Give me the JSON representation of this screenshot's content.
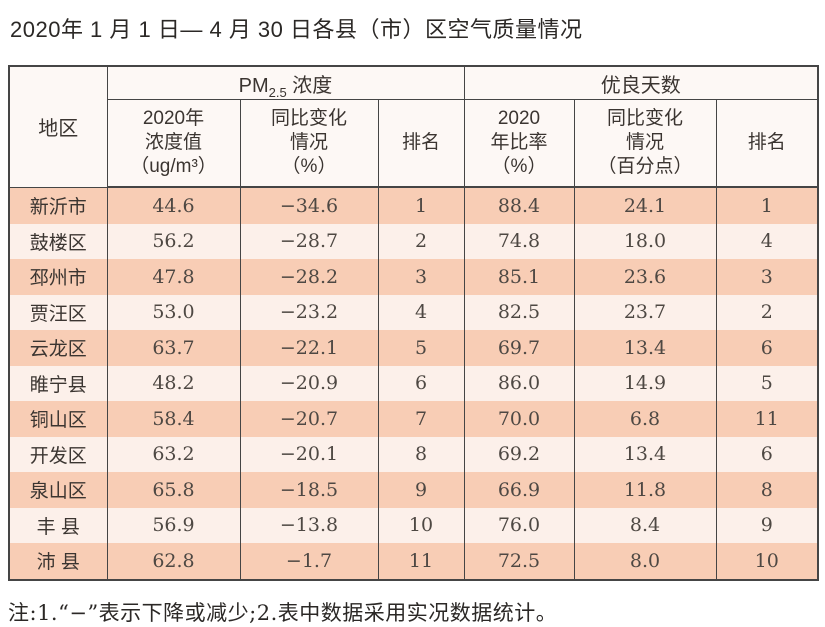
{
  "title": "2020年 1 月 1 日— 4 月 30 日各县（市）区空气质量情况",
  "table": {
    "region_header": "地区",
    "groups": {
      "pm25": {
        "base": "PM",
        "sub": "2.5",
        "rest": " 浓度"
      },
      "good_days": "优良天数"
    },
    "sub_columns": [
      {
        "id": "pm25-value",
        "lines": [
          "2020年",
          "浓度值",
          "（ug/m³）"
        ]
      },
      {
        "id": "pm25-yoy",
        "lines": [
          "同比变化",
          "情况",
          "（%）"
        ]
      },
      {
        "id": "pm25-rank",
        "lines": [
          "排名"
        ]
      },
      {
        "id": "good-rate",
        "lines": [
          "2020",
          "年比率",
          "（%）"
        ]
      },
      {
        "id": "good-yoy",
        "lines": [
          "同比变化",
          "情况",
          "（百分点）"
        ]
      },
      {
        "id": "good-rank",
        "lines": [
          "排名"
        ]
      }
    ],
    "rows": [
      {
        "region": "新沂市",
        "values": [
          "44.6",
          "−34.6",
          "1",
          "88.4",
          "24.1",
          "1"
        ]
      },
      {
        "region": "鼓楼区",
        "values": [
          "56.2",
          "−28.7",
          "2",
          "74.8",
          "18.0",
          "4"
        ]
      },
      {
        "region": "邳州市",
        "values": [
          "47.8",
          "−28.2",
          "3",
          "85.1",
          "23.6",
          "3"
        ]
      },
      {
        "region": "贾汪区",
        "values": [
          "53.0",
          "−23.2",
          "4",
          "82.5",
          "23.7",
          "2"
        ]
      },
      {
        "region": "云龙区",
        "values": [
          "63.7",
          "−22.1",
          "5",
          "69.7",
          "13.4",
          "6"
        ]
      },
      {
        "region": "睢宁县",
        "values": [
          "48.2",
          "−20.9",
          "6",
          "86.0",
          "14.9",
          "5"
        ]
      },
      {
        "region": "铜山区",
        "values": [
          "58.4",
          "−20.7",
          "7",
          "70.0",
          "6.8",
          "11"
        ]
      },
      {
        "region": "开发区",
        "values": [
          "63.2",
          "−20.1",
          "8",
          "69.2",
          "13.4",
          "6"
        ]
      },
      {
        "region": "泉山区",
        "values": [
          "65.8",
          "−18.5",
          "9",
          "66.9",
          "11.8",
          "8"
        ]
      },
      {
        "region": "丰 县",
        "values": [
          "56.9",
          "−13.8",
          "10",
          "76.0",
          "8.4",
          "9"
        ]
      },
      {
        "region": "沛 县",
        "values": [
          "62.8",
          "−1.7",
          "11",
          "72.5",
          "8.0",
          "10"
        ]
      }
    ]
  },
  "note": "注:1.“−”表示下降或减少;2.表中数据采用实况数据统计。",
  "colors": {
    "row_odd": "#f8cdb5",
    "row_even": "#fcf0ea",
    "header_bg": "#fdf8f5",
    "border": "#454545",
    "title_text": "#2b2826",
    "header_text": "#3b3531",
    "number_text": "#4e4843"
  }
}
